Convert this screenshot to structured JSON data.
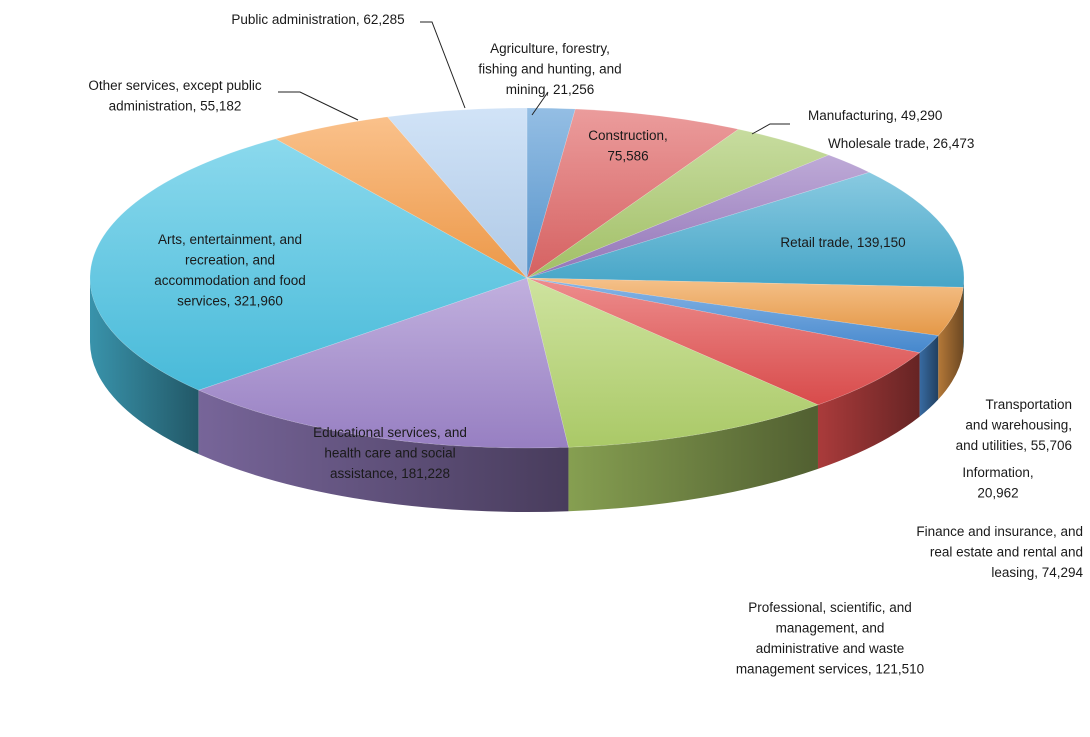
{
  "chart_data": {
    "type": "pie",
    "title": "",
    "slices": [
      {
        "label": "Agriculture, forestry, fishing and hunting, and mining, 21,256",
        "name": "Agriculture, forestry, fishing and hunting, and mining",
        "value": 21256,
        "color": "#5b9bd5",
        "lines": [
          "Agriculture, forestry,",
          "fishing and hunting, and",
          "mining, 21,256"
        ]
      },
      {
        "label": "Construction, 75,586",
        "name": "Construction",
        "value": 75586,
        "color": "#e06666",
        "lines": [
          "Construction,",
          "75,586"
        ]
      },
      {
        "label": "Manufacturing, 49,290",
        "name": "Manufacturing",
        "value": 49290,
        "color": "#a9c96b",
        "lines": [
          "Manufacturing, 49,290"
        ]
      },
      {
        "label": "Wholesale trade, 26,473",
        "name": "Wholesale trade",
        "value": 26473,
        "color": "#9b7cc2",
        "lines": [
          "Wholesale trade, 26,473"
        ]
      },
      {
        "label": "Retail trade, 139,150",
        "name": "Retail trade",
        "value": 139150,
        "color": "#4aaed1",
        "lines": [
          "Retail trade, 139,150"
        ]
      },
      {
        "label": "Transportation and warehousing, and utilities, 55,706",
        "name": "Transportation and warehousing, and utilities",
        "value": 55706,
        "color": "#f0a04b",
        "lines": [
          "Transportation",
          "and warehousing,",
          "and utilities, 55,706"
        ]
      },
      {
        "label": "Information, 20,962",
        "name": "Information",
        "value": 20962,
        "color": "#4a8fd8",
        "lines": [
          "Information,",
          "20,962"
        ]
      },
      {
        "label": "Finance and insurance, and real estate and rental and leasing, 74,294",
        "name": "Finance and insurance, and real estate and rental and leasing",
        "value": 74294,
        "color": "#e34f4f",
        "lines": [
          "Finance and insurance, and",
          "real estate and rental and",
          "leasing, 74,294"
        ]
      },
      {
        "label": "Professional, scientific, and management, and administrative and waste management services, 121,510",
        "name": "Professional, scientific, and management, and administrative and waste management services",
        "value": 121510,
        "color": "#b3d46c",
        "lines": [
          "Professional, scientific, and",
          "management, and",
          "administrative and waste",
          "management services, 121,510"
        ]
      },
      {
        "label": "Educational services, and health care and social assistance, 181,228",
        "name": "Educational services, and health care and social assistance",
        "value": 181228,
        "color": "#9f86cc",
        "lines": [
          "Educational services, and",
          "health care and social",
          "assistance, 181,228"
        ]
      },
      {
        "label": "Arts, entertainment, and recreation, and accommodation and food services, 321,960",
        "name": "Arts, entertainment, and recreation, and accommodation and food services",
        "value": 321960,
        "color": "#4cc4e4",
        "lines": [
          "Arts, entertainment, and",
          "recreation, and",
          "accommodation and food",
          "services, 321,960"
        ]
      },
      {
        "label": "Other services, except public administration, 55,182",
        "name": "Other services, except public administration",
        "value": 55182,
        "color": "#f8a04c",
        "lines": [
          "Other services, except public",
          "administration, 55,182"
        ]
      },
      {
        "label": "Public administration, 62,285",
        "name": "Public administration",
        "value": 62285,
        "color": "#b8d4f2",
        "lines": [
          "Public administration, 62,285"
        ]
      }
    ],
    "start_angle_deg": -90,
    "direction": "clockwise",
    "style": "3d-exploded-none",
    "legend": "none"
  }
}
